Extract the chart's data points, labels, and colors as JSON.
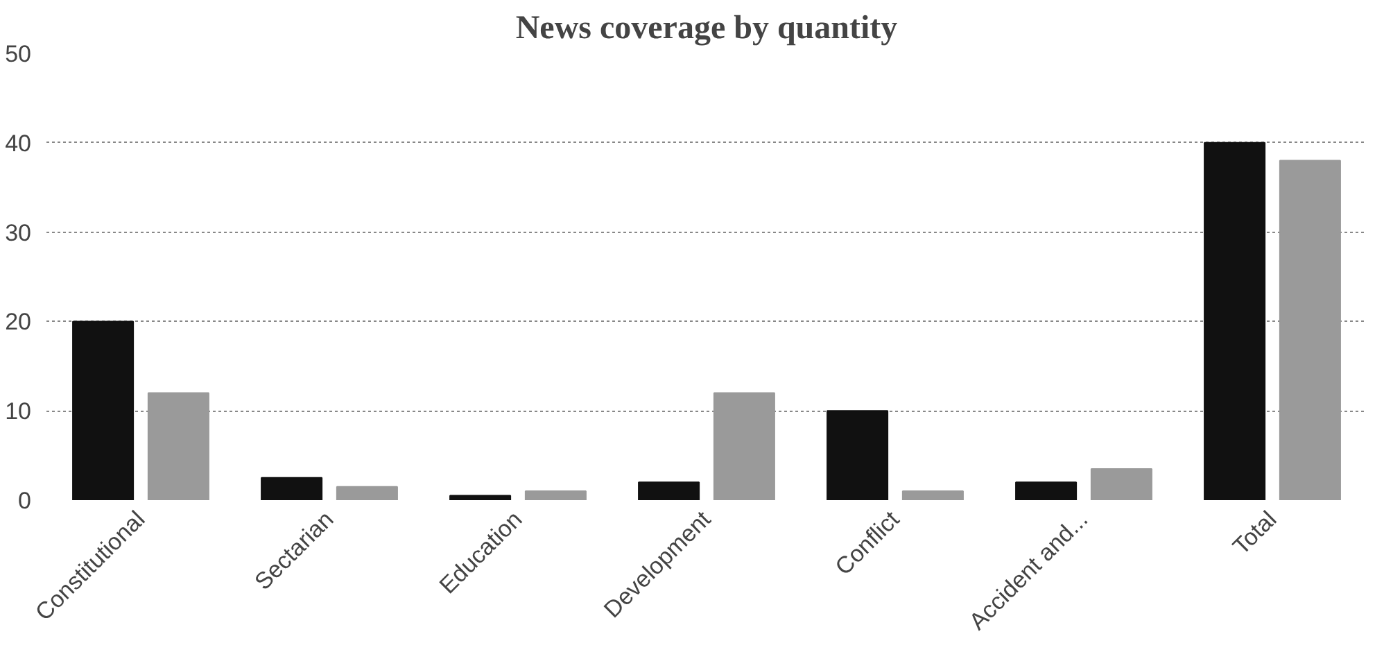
{
  "chart_data": {
    "type": "bar",
    "title": "News coverage by quantity",
    "categories": [
      "Constitutional",
      "Sectarian",
      "Education",
      "Development",
      "Conflict",
      "Accident and...",
      "Total"
    ],
    "series": [
      {
        "color": "#111111",
        "values": [
          20,
          2.5,
          0.5,
          2,
          10,
          2,
          40
        ]
      },
      {
        "color": "#9a9a9a",
        "values": [
          12,
          1.5,
          1,
          12,
          1,
          3.5,
          38
        ]
      }
    ],
    "ylim": [
      0,
      50
    ],
    "yticks": [
      0,
      10,
      20,
      30,
      40,
      50
    ],
    "grid": "y"
  }
}
